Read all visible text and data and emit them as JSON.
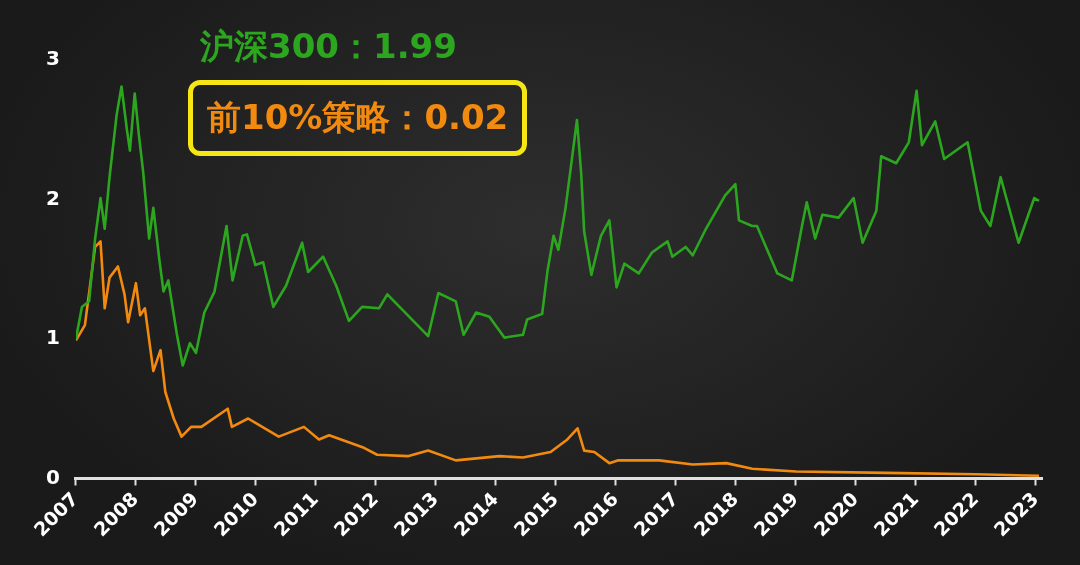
{
  "chart_data": {
    "type": "line",
    "annotations": [
      "沪深300：1.99",
      "前10%策略：0.02"
    ],
    "xlim": [
      2007,
      2023.1
    ],
    "xticks": [
      2007,
      2008,
      2009,
      2010,
      2011,
      2012,
      2013,
      2014,
      2015,
      2016,
      2017,
      2018,
      2019,
      2020,
      2021,
      2022,
      2023
    ],
    "ylim": [
      0,
      3
    ],
    "yticks": [
      0,
      1,
      2,
      3
    ],
    "grid": false,
    "legend": false,
    "marker": "none",
    "line_style": "solid",
    "series": [
      {
        "color": "#2ca61e",
        "x": [
          2007,
          2007.1,
          2007.22,
          2007.32,
          2007.41,
          2007.48,
          2007.56,
          2007.68,
          2007.76,
          2007.85,
          2007.9,
          2007.98,
          2008.05,
          2008.12,
          2008.22,
          2008.29,
          2008.39,
          2008.46,
          2008.54,
          2008.68,
          2008.78,
          2008.9,
          2009,
          2009.14,
          2009.31,
          2009.51,
          2009.61,
          2009.78,
          2009.85,
          2009.99,
          2010.12,
          2010.29,
          2010.5,
          2010.77,
          2010.87,
          2011.12,
          2011.34,
          2011.55,
          2011.77,
          2012.05,
          2012.19,
          2012.87,
          2013.04,
          2013.33,
          2013.46,
          2013.67,
          2013.89,
          2014.14,
          2014.45,
          2014.52,
          2014.77,
          2014.86,
          2014.96,
          2015.04,
          2015.16,
          2015.35,
          2015.42,
          2015.47,
          2015.59,
          2015.75,
          2015.89,
          2016.01,
          2016.14,
          2016.38,
          2016.6,
          2016.86,
          2016.94,
          2017.16,
          2017.28,
          2017.5,
          2017.82,
          2017.99,
          2018.05,
          2018.27,
          2018.35,
          2018.69,
          2018.93,
          2019.1,
          2019.18,
          2019.32,
          2019.44,
          2019.71,
          2019.96,
          2020.11,
          2020.34,
          2020.42,
          2020.67,
          2020.88,
          2021.01,
          2021.1,
          2021.32,
          2021.47,
          2021.86,
          2022.08,
          2022.24,
          2022.41,
          2022.71,
          2022.97,
          2023.05
        ],
        "values": [
          1.0,
          1.23,
          1.27,
          1.72,
          2.01,
          1.79,
          2.16,
          2.61,
          2.81,
          2.5,
          2.35,
          2.76,
          2.46,
          2.2,
          1.72,
          1.94,
          1.57,
          1.34,
          1.42,
          1.04,
          0.81,
          0.97,
          0.9,
          1.19,
          1.34,
          1.81,
          1.42,
          1.74,
          1.75,
          1.53,
          1.55,
          1.23,
          1.38,
          1.69,
          1.48,
          1.59,
          1.38,
          1.13,
          1.23,
          1.22,
          1.32,
          1.02,
          1.33,
          1.27,
          1.03,
          1.19,
          1.16,
          1.01,
          1.03,
          1.14,
          1.18,
          1.49,
          1.74,
          1.64,
          1.94,
          2.57,
          2.19,
          1.77,
          1.46,
          1.74,
          1.85,
          1.37,
          1.54,
          1.47,
          1.62,
          1.7,
          1.59,
          1.66,
          1.6,
          1.79,
          2.03,
          2.11,
          1.85,
          1.81,
          1.81,
          1.47,
          1.42,
          1.81,
          1.98,
          1.72,
          1.89,
          1.87,
          2.01,
          1.69,
          1.92,
          2.31,
          2.26,
          2.41,
          2.78,
          2.39,
          2.56,
          2.29,
          2.41,
          1.92,
          1.81,
          2.16,
          1.69,
          2.01,
          1.99
        ]
      },
      {
        "color": "#f28a10",
        "x": [
          2007,
          2007.15,
          2007.32,
          2007.41,
          2007.48,
          2007.56,
          2007.7,
          2007.81,
          2007.87,
          2008,
          2008.07,
          2008.15,
          2008.29,
          2008.41,
          2008.49,
          2008.63,
          2008.76,
          2008.92,
          2009.09,
          2009.53,
          2009.6,
          2009.87,
          2010.38,
          2010.8,
          2011.05,
          2011.22,
          2011.8,
          2012.02,
          2012.53,
          2012.87,
          2013.33,
          2014.06,
          2014.45,
          2014.91,
          2015.19,
          2015.36,
          2015.47,
          2015.64,
          2015.89,
          2016.04,
          2016.72,
          2017.28,
          2017.84,
          2018.27,
          2019,
          2020.5,
          2022,
          2023.05
        ],
        "values": [
          0.99,
          1.1,
          1.66,
          1.7,
          1.22,
          1.44,
          1.52,
          1.32,
          1.12,
          1.4,
          1.17,
          1.22,
          0.77,
          0.92,
          0.62,
          0.43,
          0.3,
          0.37,
          0.37,
          0.5,
          0.37,
          0.43,
          0.3,
          0.37,
          0.28,
          0.31,
          0.22,
          0.17,
          0.16,
          0.2,
          0.13,
          0.16,
          0.15,
          0.19,
          0.28,
          0.36,
          0.2,
          0.19,
          0.11,
          0.13,
          0.13,
          0.1,
          0.11,
          0.07,
          0.05,
          0.04,
          0.03,
          0.02
        ]
      }
    ]
  }
}
